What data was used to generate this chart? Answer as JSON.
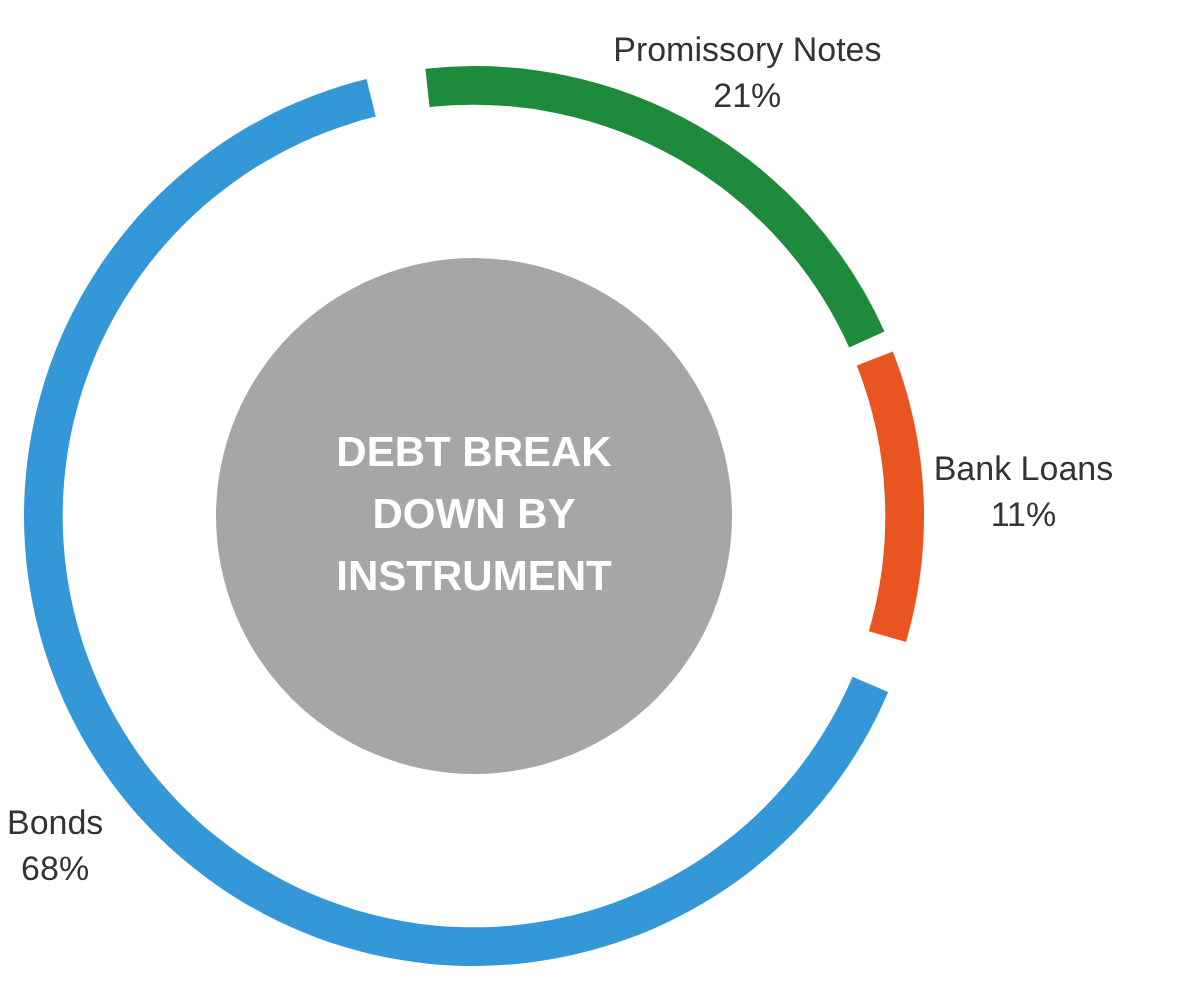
{
  "chart_data": {
    "type": "donut",
    "title": "DEBT BREAK DOWN BY INSTRUMENT",
    "categories": [
      "Promissory Notes",
      "Bank Loans",
      "Bonds"
    ],
    "values": [
      21,
      11,
      68
    ],
    "colors": [
      "#1e8a3c",
      "#e85520",
      "#3498d8"
    ],
    "value_labels": [
      "21%",
      "11%",
      "68%"
    ],
    "legend": false
  }
}
